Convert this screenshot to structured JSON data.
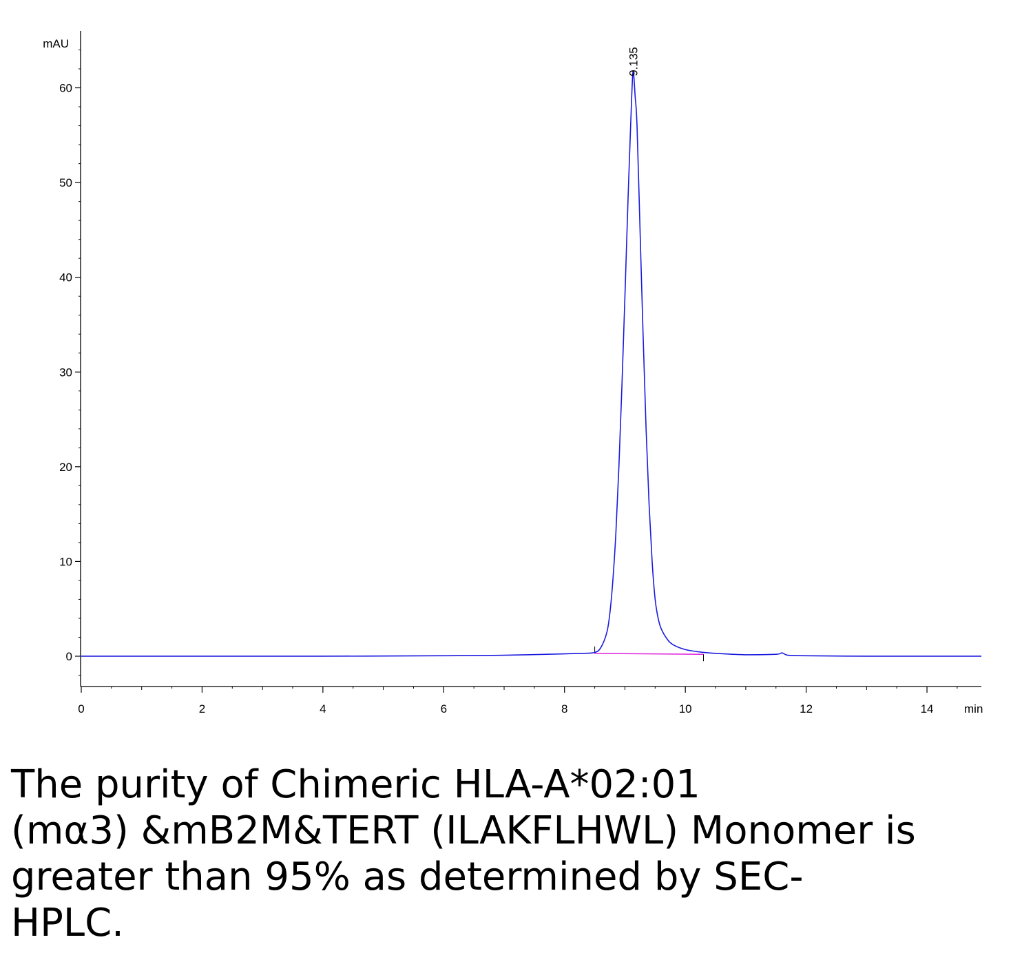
{
  "chart_data": {
    "type": "line",
    "ylabel": "mAU",
    "xlabel": "min",
    "xlim": [
      0,
      14.9
    ],
    "ylim": [
      -3.2,
      66
    ],
    "x_ticks": [
      0,
      2,
      4,
      6,
      8,
      10,
      12,
      14
    ],
    "y_ticks": [
      0,
      10,
      20,
      30,
      40,
      50,
      60
    ],
    "grid": false,
    "colors": {
      "signal": "#1a1adf",
      "baseline": "#e02ee0",
      "axis": "#000000"
    },
    "series": [
      {
        "x": [
          0,
          2,
          4,
          6,
          7,
          8,
          8.3,
          8.5,
          8.6,
          8.7,
          8.75,
          8.8,
          8.85,
          8.9,
          8.95,
          9.0,
          9.05,
          9.1,
          9.135,
          9.17,
          9.2,
          9.25,
          9.3,
          9.35,
          9.4,
          9.45,
          9.5,
          9.55,
          9.6,
          9.7,
          9.8,
          10.0,
          10.3,
          10.5,
          11.0,
          11.5,
          11.6,
          11.7,
          12,
          13,
          14,
          14.9
        ],
        "y": [
          0,
          0,
          0,
          0.05,
          0.1,
          0.25,
          0.3,
          0.4,
          0.9,
          2.5,
          4.5,
          8,
          13,
          20,
          28.5,
          38,
          48,
          57,
          61.8,
          59,
          56,
          45,
          34,
          24,
          16,
          10,
          6,
          4,
          2.9,
          1.8,
          1.2,
          0.7,
          0.4,
          0.3,
          0.15,
          0.2,
          0.35,
          0.1,
          0.05,
          0,
          0,
          0
        ]
      }
    ],
    "integration_baseline": {
      "x": [
        8.5,
        10.3
      ],
      "y": [
        0.3,
        0.2
      ]
    },
    "integration_markers_x": [
      8.5,
      10.3
    ],
    "annotations": [
      {
        "text": "9.135",
        "x": 9.135,
        "y": 61.8
      }
    ]
  },
  "caption": {
    "lines": [
      "The purity of Chimeric HLA-A*02:01",
      "(mα3) &mB2M&TERT (ILAKFLHWL) Monomer is",
      "greater than 95% as determined by SEC-",
      "HPLC."
    ]
  }
}
